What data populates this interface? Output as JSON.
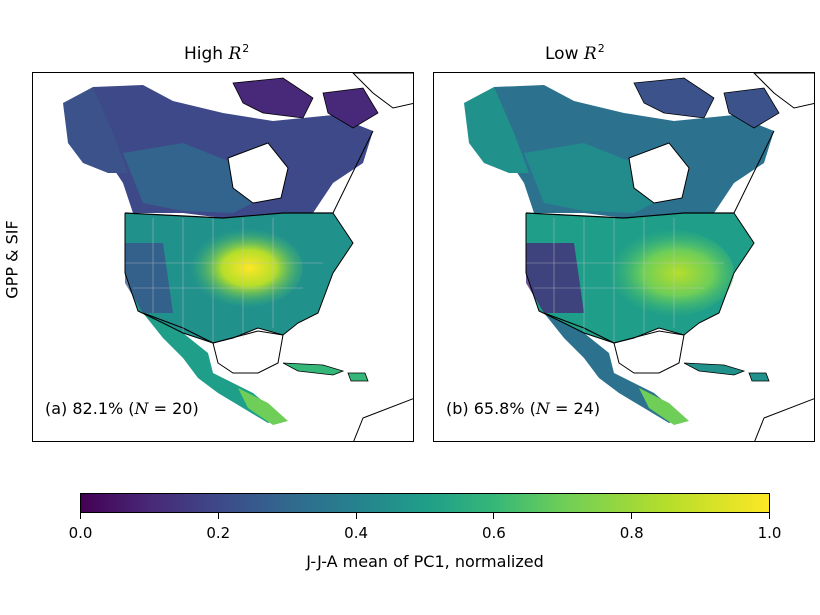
{
  "row_label": "GPP & SIF",
  "panels": [
    {
      "title_prefix": "High ",
      "title_var": "R",
      "title_sup": "2",
      "annotation": "(a) 82.1% (",
      "annotation_var": "N",
      "annotation_eq": " = 20)"
    },
    {
      "title_prefix": "Low ",
      "title_var": "R",
      "title_sup": "2",
      "annotation": "(b) 65.8% (",
      "annotation_var": "N",
      "annotation_eq": " = 24)"
    }
  ],
  "colorbar": {
    "label": "J-J-A mean of PC1, normalized",
    "ticks": [
      "0.0",
      "0.2",
      "0.4",
      "0.6",
      "0.8",
      "1.0"
    ],
    "range": [
      0.0,
      1.0
    ],
    "colormap": "viridis",
    "stops": [
      "#440154",
      "#3e4989",
      "#26828e",
      "#35b779",
      "#b5de2b",
      "#fde725"
    ]
  }
}
